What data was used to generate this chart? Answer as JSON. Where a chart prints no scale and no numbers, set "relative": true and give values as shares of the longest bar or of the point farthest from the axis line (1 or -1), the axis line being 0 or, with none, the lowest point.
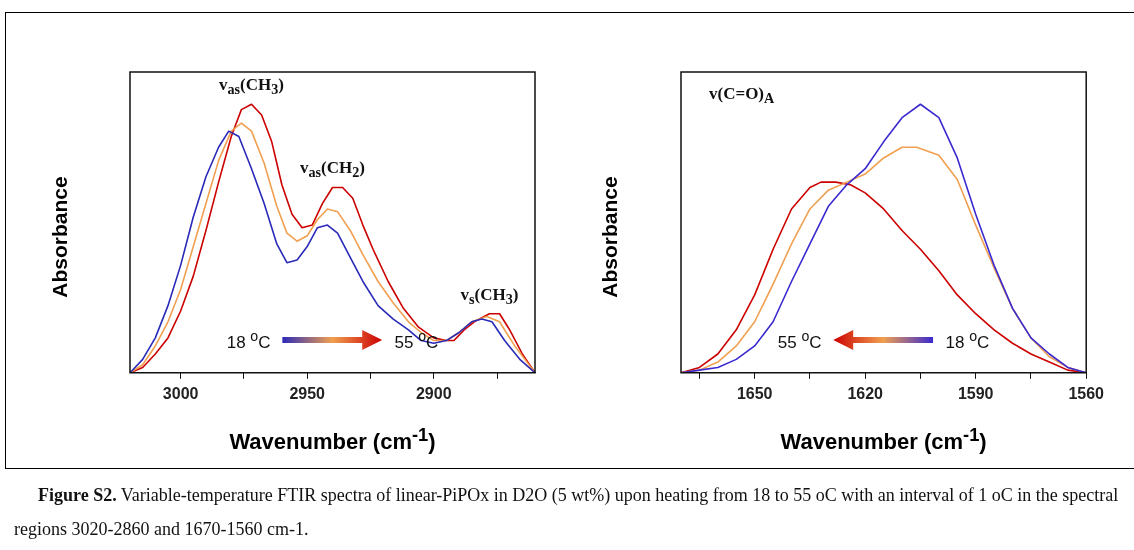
{
  "chart_data": [
    {
      "type": "line",
      "relative": true,
      "xlabel": "Wavenumber (cm$^{-1}$)",
      "ylabel": "Absorbance",
      "xlim": [
        3020,
        2860
      ],
      "xticks": [
        {
          "value": 3000,
          "label": "3000"
        },
        {
          "value": 2975,
          "label": null
        },
        {
          "value": 2950,
          "label": "2950"
        },
        {
          "value": 2925,
          "label": null
        },
        {
          "value": 2900,
          "label": "2900"
        },
        {
          "value": 2875,
          "label": null
        }
      ],
      "marker": "none",
      "annotations": [
        "v$_{as}$(CH$_{3}$)",
        "v$_{as}$(CH$_{2}$)",
        "v$_{s}$(CH$_{3}$)",
        "18 $^{o}$C",
        "55 $^{o}$C"
      ],
      "series": [
        {
          "color": "#2a2ab8",
          "x": [
            3020,
            3015,
            3010,
            3005,
            3000,
            2995,
            2990,
            2985,
            2981,
            2977,
            2972,
            2967,
            2962,
            2958,
            2954,
            2950,
            2946,
            2942,
            2938,
            2933,
            2928,
            2922,
            2916,
            2910,
            2905,
            2900,
            2895,
            2890,
            2885,
            2881,
            2877,
            2872,
            2866,
            2860
          ],
          "values": [
            0,
            0.05,
            0.13,
            0.25,
            0.4,
            0.58,
            0.73,
            0.84,
            0.9,
            0.88,
            0.76,
            0.63,
            0.48,
            0.41,
            0.42,
            0.47,
            0.54,
            0.55,
            0.52,
            0.43,
            0.34,
            0.25,
            0.2,
            0.16,
            0.12,
            0.11,
            0.12,
            0.15,
            0.19,
            0.2,
            0.19,
            0.12,
            0.05,
            0
          ]
        },
        {
          "color": "#f0a050",
          "x": [
            3020,
            3015,
            3010,
            3005,
            3000,
            2995,
            2990,
            2985,
            2980,
            2976,
            2972,
            2967,
            2962,
            2958,
            2954,
            2950,
            2946,
            2942,
            2938,
            2933,
            2928,
            2922,
            2916,
            2910,
            2905,
            2900,
            2895,
            2890,
            2885,
            2879,
            2874,
            2868,
            2864,
            2860
          ],
          "values": [
            0,
            0.03,
            0.1,
            0.19,
            0.31,
            0.47,
            0.63,
            0.79,
            0.9,
            0.93,
            0.9,
            0.78,
            0.62,
            0.52,
            0.49,
            0.51,
            0.57,
            0.61,
            0.6,
            0.53,
            0.44,
            0.34,
            0.26,
            0.19,
            0.15,
            0.12,
            0.12,
            0.15,
            0.19,
            0.21,
            0.19,
            0.1,
            0.05,
            0
          ]
        },
        {
          "color": "#cc0000",
          "x": [
            3020,
            3015,
            3010,
            3005,
            3000,
            2995,
            2990,
            2985,
            2980,
            2976,
            2972,
            2968,
            2964,
            2960,
            2956,
            2952,
            2948,
            2944,
            2940,
            2936,
            2932,
            2928,
            2924,
            2918,
            2912,
            2906,
            2900,
            2895,
            2892,
            2888,
            2884,
            2878,
            2874,
            2870,
            2865,
            2860
          ],
          "values": [
            0,
            0.02,
            0.07,
            0.13,
            0.23,
            0.36,
            0.53,
            0.71,
            0.88,
            0.98,
            1,
            0.96,
            0.86,
            0.7,
            0.59,
            0.54,
            0.55,
            0.63,
            0.69,
            0.69,
            0.65,
            0.55,
            0.46,
            0.34,
            0.24,
            0.17,
            0.13,
            0.12,
            0.12,
            0.16,
            0.19,
            0.22,
            0.22,
            0.16,
            0.07,
            0
          ]
        }
      ]
    },
    {
      "type": "line",
      "relative": true,
      "xlabel": "Wavenumber (cm$^{-1}$)",
      "ylabel": "Absorbance",
      "xlim": [
        1670,
        1560
      ],
      "xticks": [
        {
          "value": 1665,
          "label": null
        },
        {
          "value": 1650,
          "label": "1650"
        },
        {
          "value": 1635,
          "label": null
        },
        {
          "value": 1620,
          "label": "1620"
        },
        {
          "value": 1605,
          "label": null
        },
        {
          "value": 1590,
          "label": "1590"
        },
        {
          "value": 1575,
          "label": null
        },
        {
          "value": 1560,
          "label": "1560"
        }
      ],
      "marker": "none",
      "title": "v(C=O)$_{A}$",
      "annotations": [
        "55 $^{o}$C",
        "18 $^{o}$C",
        "Figure S2. Variable-temperature FTIR spectra of linear-PiPOx in D2O (5 wt%) upon heating from 18 to 55 oC with an interval of 1 oC in the spectral regions 3020-2860 and 1670-1560 cm-1."
      ],
      "series": [
        {
          "color": "#3a2ad0",
          "x": [
            1670,
            1665,
            1660,
            1655,
            1650,
            1645,
            1640,
            1635,
            1630,
            1625,
            1620,
            1615,
            1610,
            1605,
            1600,
            1595,
            1590,
            1585,
            1580,
            1575,
            1570,
            1565,
            1560
          ],
          "values": [
            0,
            0.01,
            0.02,
            0.05,
            0.1,
            0.19,
            0.34,
            0.48,
            0.62,
            0.7,
            0.76,
            0.86,
            0.95,
            1,
            0.95,
            0.8,
            0.59,
            0.4,
            0.24,
            0.13,
            0.07,
            0.02,
            0
          ]
        },
        {
          "color": "#f0a050",
          "x": [
            1670,
            1665,
            1660,
            1655,
            1650,
            1645,
            1640,
            1635,
            1630,
            1625,
            1620,
            1615,
            1610,
            1606,
            1600,
            1595,
            1590,
            1585,
            1580,
            1575,
            1570,
            1565,
            1560
          ],
          "values": [
            0,
            0.01,
            0.04,
            0.1,
            0.19,
            0.33,
            0.48,
            0.61,
            0.68,
            0.71,
            0.74,
            0.8,
            0.84,
            0.84,
            0.81,
            0.72,
            0.55,
            0.39,
            0.24,
            0.13,
            0.06,
            0.02,
            0
          ]
        },
        {
          "color": "#cc0000",
          "x": [
            1670,
            1665,
            1660,
            1655,
            1650,
            1645,
            1640,
            1635,
            1632,
            1628,
            1624,
            1620,
            1615,
            1610,
            1605,
            1600,
            1595,
            1590,
            1585,
            1580,
            1575,
            1570,
            1565,
            1560
          ],
          "values": [
            0,
            0.02,
            0.07,
            0.16,
            0.29,
            0.46,
            0.61,
            0.69,
            0.71,
            0.71,
            0.7,
            0.67,
            0.61,
            0.53,
            0.46,
            0.38,
            0.29,
            0.22,
            0.16,
            0.11,
            0.07,
            0.04,
            0.01,
            0
          ]
        }
      ]
    }
  ]
}
